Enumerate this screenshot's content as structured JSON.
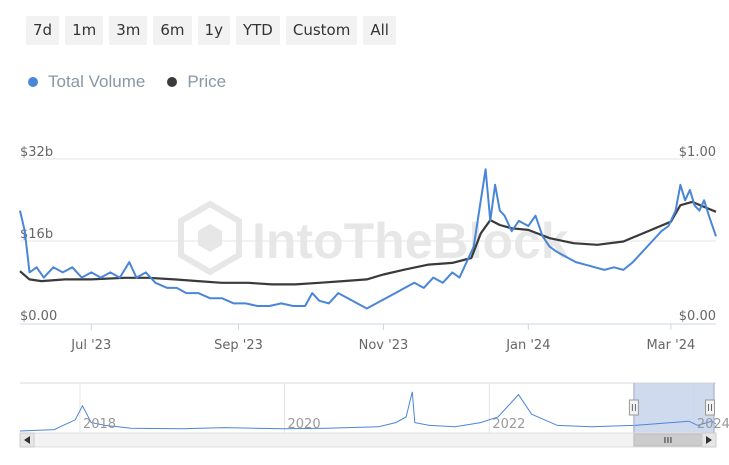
{
  "range_buttons": [
    "7d",
    "1m",
    "3m",
    "6m",
    "1y",
    "YTD",
    "Custom",
    "All"
  ],
  "legend": [
    {
      "name": "Total Volume",
      "color": "#4a86d8"
    },
    {
      "name": "Price",
      "color": "#3a3a3a"
    }
  ],
  "watermark": "IntoTheBlock",
  "chart_data": {
    "type": "line",
    "x_range": [
      "2023-06-01",
      "2024-03-20"
    ],
    "x_tick_labels": [
      {
        "date": "2023-07-01",
        "label": "Jul '23"
      },
      {
        "date": "2023-09-01",
        "label": "Sep '23"
      },
      {
        "date": "2023-11-01",
        "label": "Nov '23"
      },
      {
        "date": "2024-01-01",
        "label": "Jan '24"
      },
      {
        "date": "2024-03-01",
        "label": "Mar '24"
      }
    ],
    "y_left": {
      "label": "Total Volume",
      "range": [
        0,
        32
      ],
      "unit": "billion USD",
      "ticks": [
        {
          "value": 0,
          "label": "$0.00"
        },
        {
          "value": 16,
          "label": "$16b"
        },
        {
          "value": 32,
          "label": "$32b"
        }
      ]
    },
    "y_right": {
      "label": "Price",
      "range": [
        0,
        1
      ],
      "unit": "USD",
      "ticks": [
        {
          "value": 0,
          "label": "$0.00"
        },
        {
          "value": 1,
          "label": "$1.00"
        }
      ]
    },
    "series": [
      {
        "name": "Total Volume",
        "axis": "left",
        "color": "#4a86d8",
        "points": [
          [
            "2023-06-01",
            22
          ],
          [
            "2023-06-03",
            18
          ],
          [
            "2023-06-05",
            10
          ],
          [
            "2023-06-08",
            11
          ],
          [
            "2023-06-11",
            9
          ],
          [
            "2023-06-15",
            11
          ],
          [
            "2023-06-19",
            10
          ],
          [
            "2023-06-23",
            11
          ],
          [
            "2023-06-27",
            9
          ],
          [
            "2023-07-01",
            10
          ],
          [
            "2023-07-05",
            9
          ],
          [
            "2023-07-09",
            10
          ],
          [
            "2023-07-13",
            9
          ],
          [
            "2023-07-17",
            12
          ],
          [
            "2023-07-20",
            9
          ],
          [
            "2023-07-24",
            10
          ],
          [
            "2023-07-28",
            8
          ],
          [
            "2023-08-02",
            7
          ],
          [
            "2023-08-06",
            7
          ],
          [
            "2023-08-10",
            6
          ],
          [
            "2023-08-15",
            6
          ],
          [
            "2023-08-20",
            5
          ],
          [
            "2023-08-25",
            5
          ],
          [
            "2023-08-30",
            4
          ],
          [
            "2023-09-04",
            4
          ],
          [
            "2023-09-09",
            3.5
          ],
          [
            "2023-09-14",
            3.5
          ],
          [
            "2023-09-19",
            4
          ],
          [
            "2023-09-24",
            3.5
          ],
          [
            "2023-09-29",
            3.5
          ],
          [
            "2023-10-02",
            6
          ],
          [
            "2023-10-05",
            4.5
          ],
          [
            "2023-10-09",
            4
          ],
          [
            "2023-10-13",
            6
          ],
          [
            "2023-10-17",
            5
          ],
          [
            "2023-10-21",
            4
          ],
          [
            "2023-10-25",
            3
          ],
          [
            "2023-10-29",
            4
          ],
          [
            "2023-11-02",
            5
          ],
          [
            "2023-11-06",
            6
          ],
          [
            "2023-11-10",
            7
          ],
          [
            "2023-11-14",
            8
          ],
          [
            "2023-11-18",
            7
          ],
          [
            "2023-11-22",
            9
          ],
          [
            "2023-11-26",
            8
          ],
          [
            "2023-11-30",
            10
          ],
          [
            "2023-12-03",
            9
          ],
          [
            "2023-12-06",
            12
          ],
          [
            "2023-12-09",
            15
          ],
          [
            "2023-12-12",
            24
          ],
          [
            "2023-12-14",
            30
          ],
          [
            "2023-12-16",
            20
          ],
          [
            "2023-12-18",
            27
          ],
          [
            "2023-12-20",
            22
          ],
          [
            "2023-12-22",
            21
          ],
          [
            "2023-12-25",
            18
          ],
          [
            "2023-12-28",
            20
          ],
          [
            "2024-01-01",
            19
          ],
          [
            "2024-01-04",
            21
          ],
          [
            "2024-01-07",
            17
          ],
          [
            "2024-01-10",
            15
          ],
          [
            "2024-01-13",
            14
          ],
          [
            "2024-01-17",
            13
          ],
          [
            "2024-01-21",
            12
          ],
          [
            "2024-01-25",
            11.5
          ],
          [
            "2024-01-29",
            11
          ],
          [
            "2024-02-02",
            10.5
          ],
          [
            "2024-02-06",
            11
          ],
          [
            "2024-02-10",
            10.5
          ],
          [
            "2024-02-14",
            12
          ],
          [
            "2024-02-18",
            14
          ],
          [
            "2024-02-22",
            16
          ],
          [
            "2024-02-26",
            18
          ],
          [
            "2024-02-29",
            19
          ],
          [
            "2024-03-03",
            22
          ],
          [
            "2024-03-05",
            27
          ],
          [
            "2024-03-07",
            24
          ],
          [
            "2024-03-09",
            26
          ],
          [
            "2024-03-11",
            23
          ],
          [
            "2024-03-13",
            22
          ],
          [
            "2024-03-15",
            24
          ],
          [
            "2024-03-17",
            21
          ],
          [
            "2024-03-20",
            17
          ]
        ]
      },
      {
        "name": "Price",
        "axis": "right",
        "color": "#3a3a3a",
        "points": [
          [
            "2023-06-01",
            0.32
          ],
          [
            "2023-06-05",
            0.27
          ],
          [
            "2023-06-10",
            0.26
          ],
          [
            "2023-06-20",
            0.27
          ],
          [
            "2023-07-01",
            0.27
          ],
          [
            "2023-07-15",
            0.28
          ],
          [
            "2023-07-25",
            0.28
          ],
          [
            "2023-08-05",
            0.27
          ],
          [
            "2023-08-15",
            0.26
          ],
          [
            "2023-08-25",
            0.25
          ],
          [
            "2023-09-05",
            0.25
          ],
          [
            "2023-09-15",
            0.24
          ],
          [
            "2023-09-25",
            0.24
          ],
          [
            "2023-10-05",
            0.25
          ],
          [
            "2023-10-15",
            0.26
          ],
          [
            "2023-10-25",
            0.27
          ],
          [
            "2023-11-01",
            0.3
          ],
          [
            "2023-11-10",
            0.33
          ],
          [
            "2023-11-20",
            0.36
          ],
          [
            "2023-11-30",
            0.37
          ],
          [
            "2023-12-08",
            0.4
          ],
          [
            "2023-12-12",
            0.55
          ],
          [
            "2023-12-16",
            0.63
          ],
          [
            "2023-12-20",
            0.6
          ],
          [
            "2023-12-25",
            0.58
          ],
          [
            "2024-01-01",
            0.57
          ],
          [
            "2024-01-10",
            0.52
          ],
          [
            "2024-01-20",
            0.49
          ],
          [
            "2024-01-30",
            0.48
          ],
          [
            "2024-02-10",
            0.5
          ],
          [
            "2024-02-20",
            0.56
          ],
          [
            "2024-03-01",
            0.62
          ],
          [
            "2024-03-05",
            0.72
          ],
          [
            "2024-03-10",
            0.74
          ],
          [
            "2024-03-15",
            0.71
          ],
          [
            "2024-03-20",
            0.68
          ]
        ]
      }
    ],
    "grid": {
      "horizontal": true,
      "vertical": false
    },
    "legend_position": "top-left"
  },
  "navigator": {
    "year_labels": [
      {
        "date": "2018-01-01",
        "label": "2018"
      },
      {
        "date": "2020-01-01",
        "label": "2020"
      },
      {
        "date": "2022-01-01",
        "label": "2022"
      },
      {
        "date": "2024-01-01",
        "label": "2024"
      }
    ],
    "x_range": [
      "2017-06-01",
      "2024-03-20"
    ],
    "selected_range": [
      "2023-06-01",
      "2024-03-20"
    ],
    "volume_points": [
      [
        "2017-06-01",
        0
      ],
      [
        "2017-10-01",
        0.5
      ],
      [
        "2017-12-15",
        4
      ],
      [
        "2018-01-10",
        9
      ],
      [
        "2018-02-10",
        3
      ],
      [
        "2018-04-01",
        2
      ],
      [
        "2018-07-01",
        1
      ],
      [
        "2019-01-01",
        0.8
      ],
      [
        "2019-06-01",
        1.2
      ],
      [
        "2020-01-01",
        0.8
      ],
      [
        "2020-06-01",
        1
      ],
      [
        "2020-12-01",
        1.5
      ],
      [
        "2021-02-01",
        3
      ],
      [
        "2021-03-10",
        5
      ],
      [
        "2021-04-01",
        14
      ],
      [
        "2021-04-10",
        3
      ],
      [
        "2021-06-01",
        2
      ],
      [
        "2021-09-01",
        1.5
      ],
      [
        "2021-12-01",
        3
      ],
      [
        "2022-02-01",
        5
      ],
      [
        "2022-04-15",
        13
      ],
      [
        "2022-06-01",
        6
      ],
      [
        "2022-09-01",
        2
      ],
      [
        "2023-01-01",
        1.5
      ],
      [
        "2023-06-01",
        2
      ],
      [
        "2023-12-14",
        3.5
      ],
      [
        "2024-01-15",
        2
      ],
      [
        "2024-03-05",
        3.5
      ],
      [
        "2024-03-20",
        2.5
      ]
    ],
    "volume_max": 15
  }
}
